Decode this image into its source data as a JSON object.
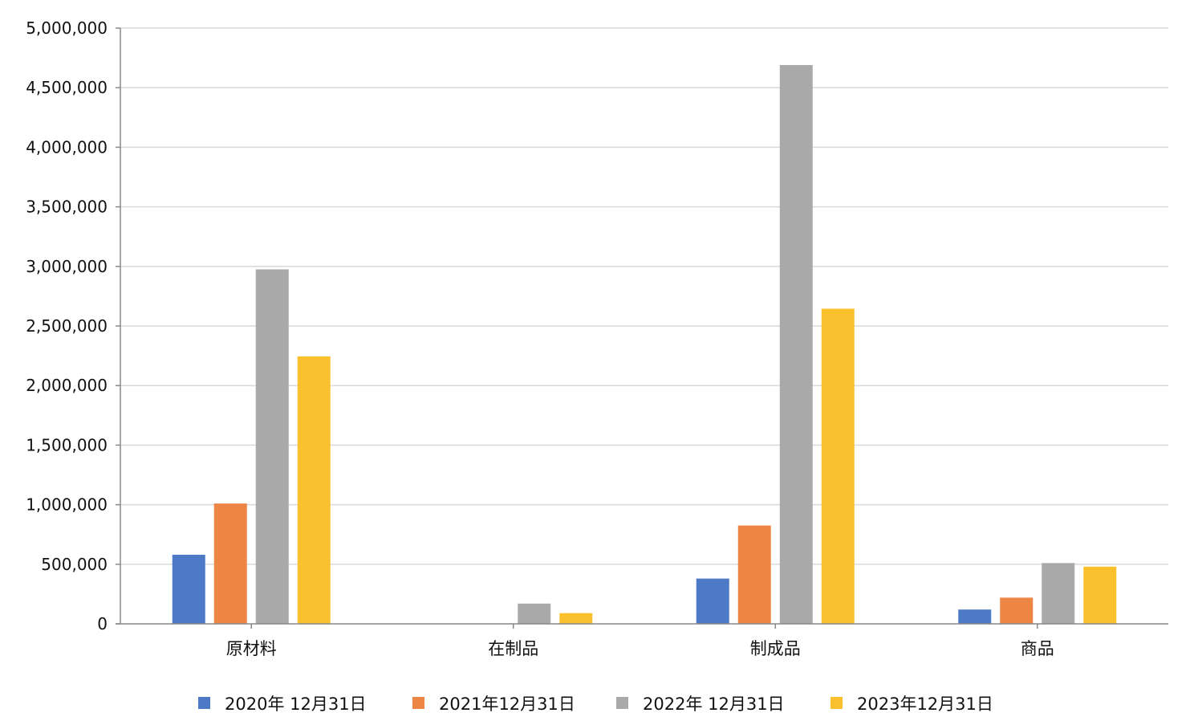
{
  "chart_data": {
    "type": "bar",
    "title": "",
    "xlabel": "",
    "ylabel": "",
    "categories": [
      "原材料",
      "在制品",
      "制成品",
      "商品"
    ],
    "series": [
      {
        "name": "2020年 12月31日",
        "color": "#4E79C7",
        "values": [
          580000,
          0,
          380000,
          120000
        ]
      },
      {
        "name": "2021年12月31日",
        "color": "#ED8544",
        "values": [
          1010000,
          0,
          825000,
          220000
        ]
      },
      {
        "name": "2022年 12月31日",
        "color": "#A9A9A9",
        "values": [
          2975000,
          170000,
          4690000,
          510000
        ]
      },
      {
        "name": "2023年12月31日",
        "color": "#FBC02D",
        "values": [
          2245000,
          90000,
          2645000,
          480000
        ]
      }
    ],
    "ylim": [
      0,
      5000000
    ],
    "yticks": [
      0,
      500000,
      1000000,
      1500000,
      2000000,
      2500000,
      3000000,
      3500000,
      4000000,
      4500000,
      5000000
    ],
    "ytick_labels": [
      "0",
      "500,000",
      "1,000,000",
      "1,500,000",
      "2,000,000",
      "2,500,000",
      "3,000,000",
      "3,500,000",
      "4,000,000",
      "4,500,000",
      "5,000,000"
    ],
    "grid": true,
    "legend_position": "bottom"
  }
}
